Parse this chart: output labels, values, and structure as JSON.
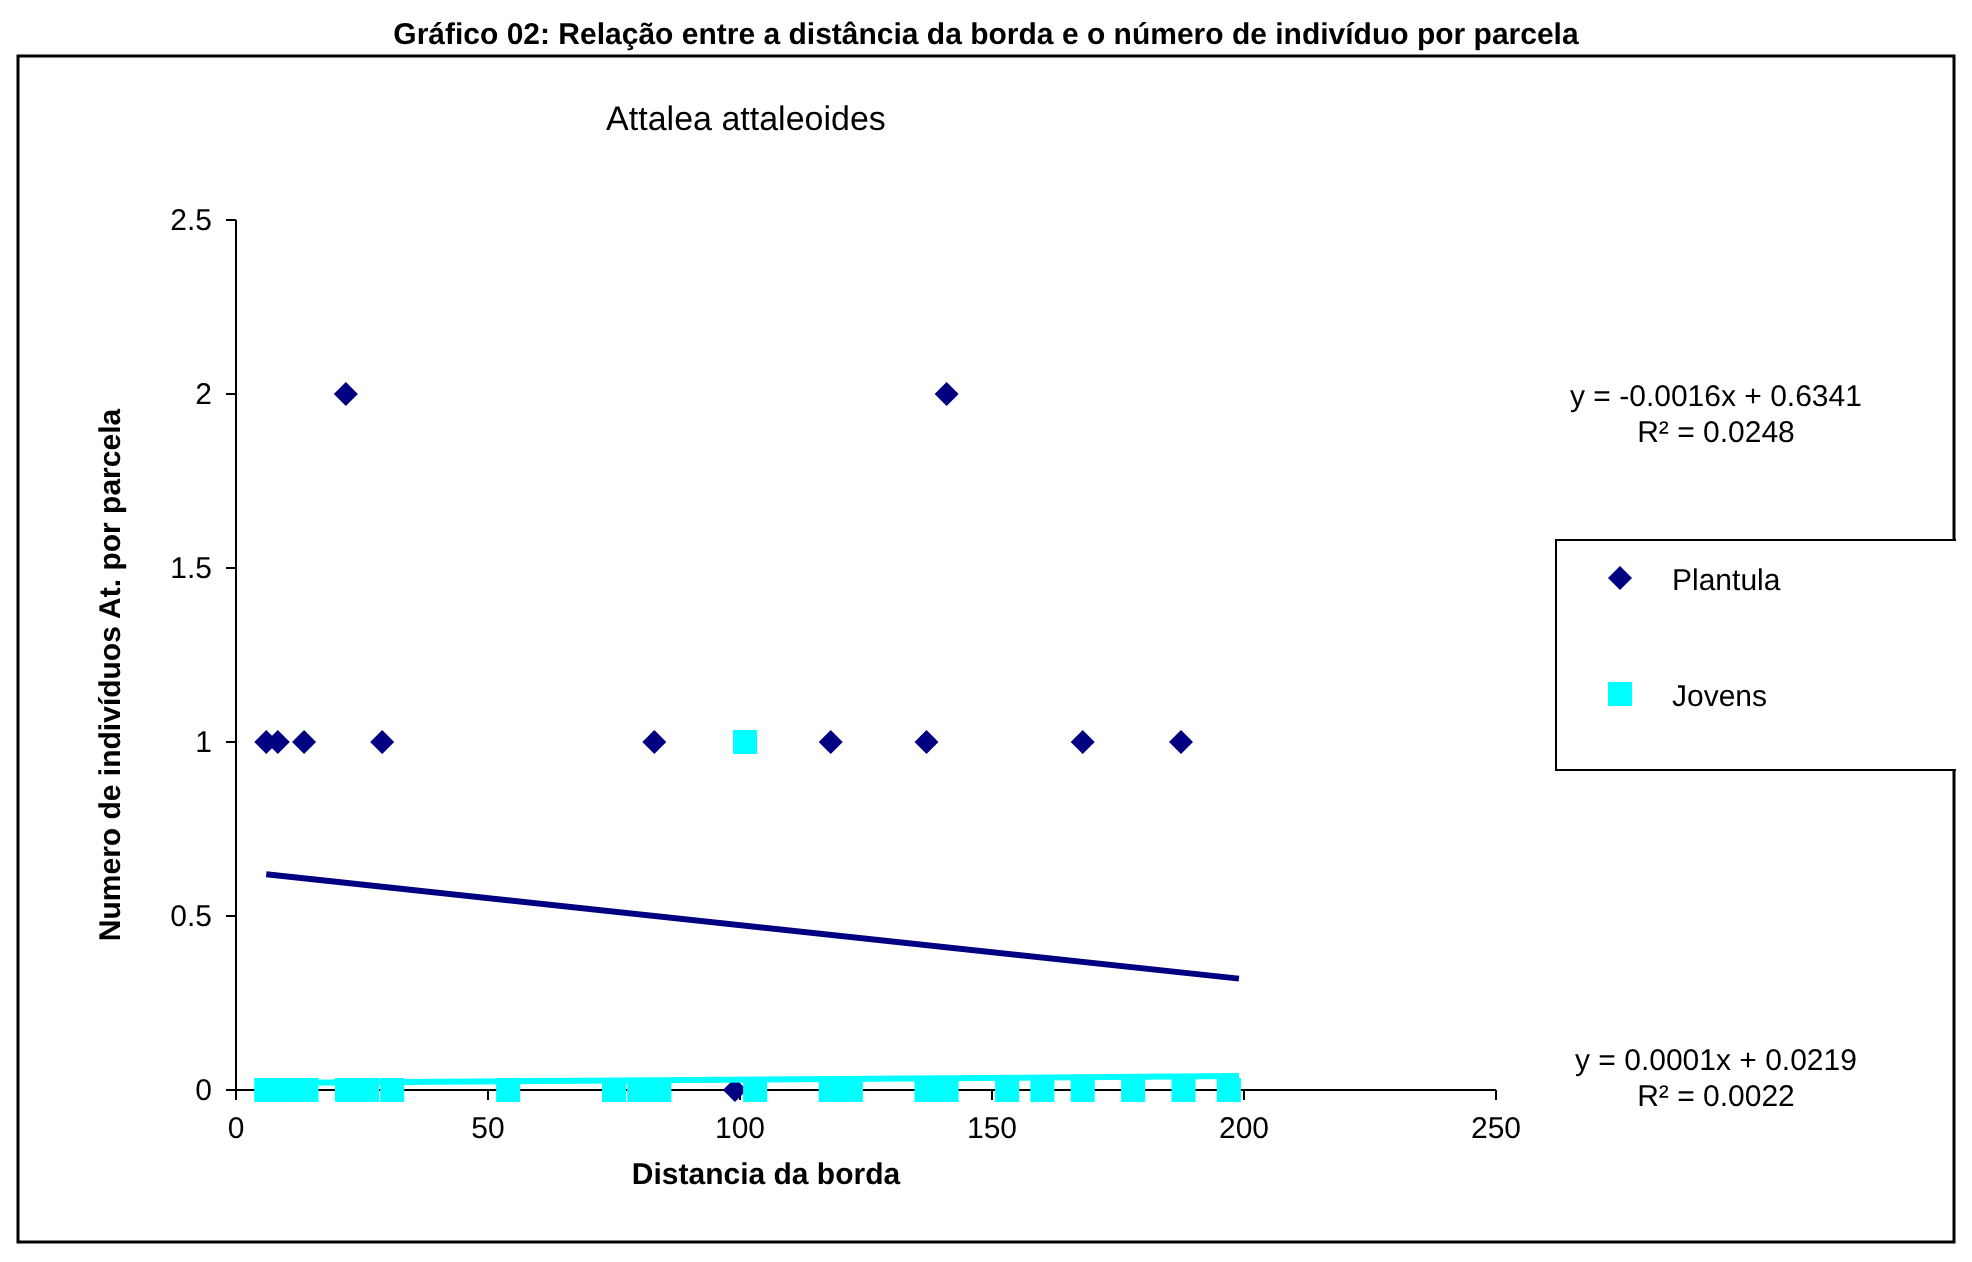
{
  "chart_data": {
    "type": "scatter",
    "title": "Gráfico 02: Relação entre a distância da borda e o número de indivíduo por parcela",
    "subtitle": "Attalea attaleoides",
    "xlabel": "Distancia da borda",
    "ylabel": "Numero de indivíduos At.  por parcela",
    "xlim": [
      0,
      250
    ],
    "xticks": [
      0,
      50,
      100,
      150,
      200,
      250
    ],
    "ylim": [
      0,
      2.5
    ],
    "yticks": [
      0,
      0.5,
      1,
      1.5,
      2,
      2.5
    ],
    "grid": false,
    "legend": "right",
    "series": [
      {
        "name": "Plantula",
        "color": "#000080",
        "marker": "diamond",
        "x": [
          6,
          8.3,
          13.5,
          21.8,
          29,
          83,
          99,
          118,
          137,
          141,
          168,
          187.5
        ],
        "values": [
          1,
          1,
          1,
          2,
          1,
          1,
          0,
          1,
          1,
          2,
          1,
          1
        ]
      },
      {
        "name": "Jovens",
        "color": "#00ffff",
        "marker": "square",
        "x": [
          6,
          10,
          14,
          22,
          26,
          31,
          54,
          75,
          80,
          84,
          101,
          103,
          118,
          122,
          137,
          141,
          153,
          160,
          168,
          178,
          188,
          197
        ],
        "values": [
          0,
          0,
          0,
          0,
          0,
          0,
          0,
          0,
          0,
          0,
          1,
          0,
          0,
          0,
          0,
          0,
          0,
          0,
          0,
          0,
          0,
          0
        ]
      },
      {
        "type": "line",
        "color": "#000080",
        "x": [
          6,
          199
        ],
        "values": [
          0.62,
          0.32
        ]
      },
      {
        "type": "line",
        "color": "#00ffff",
        "x": [
          5,
          199
        ],
        "values": [
          0.02,
          0.04
        ]
      }
    ],
    "annotations": [
      "y = -0.0016x + 0.6341\nR² = 0.0248",
      "y = 0.0001x + 0.0219\nR² = 0.0022"
    ]
  }
}
